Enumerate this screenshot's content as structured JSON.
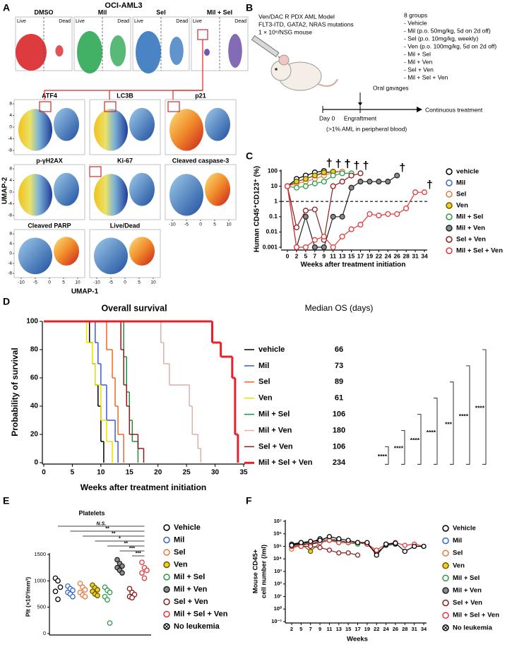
{
  "panel_labels": [
    "A",
    "B",
    "C",
    "D",
    "E",
    "F"
  ],
  "panel_a": {
    "title": "OCI-AML3",
    "conditions": [
      "DMSO",
      "Mil",
      "Sel",
      "Mil + Sel"
    ],
    "gates": [
      "Live",
      "Dead"
    ],
    "markers": [
      "ATF4",
      "LC3B",
      "p21",
      "p-γH2AX",
      "Ki-67",
      "Cleaved caspase-3",
      "Cleaved PARP",
      "Live/Dead"
    ],
    "ylabel": "UMAP-2",
    "xlabel": "UMAP-1",
    "xticks": [
      -10,
      -5,
      0,
      5,
      10
    ],
    "yticks": [
      8,
      4,
      0,
      -4,
      -8
    ]
  },
  "panel_b": {
    "model": [
      "Ven/DAC R PDX AML Model",
      "FLT3-ITD, GATA2, NRAS mutations",
      "1 × 10⁶/NSG mouse"
    ],
    "groups_title": "8 groups",
    "groups": [
      "- Vehicle",
      "- Mil (p.o. 50mg/kg, 5d on 2d off)",
      "- Sel (p.o. 10mg/kg, weekly)",
      "- Ven (p.o. 100mg/kg, 5d on 2d off)",
      "- Mil + Sel",
      "- Mil + Ven",
      "- Sel + Ven",
      "- Mil + Sel + Ven"
    ],
    "oral": "Oral gavages",
    "day0": "Day 0",
    "engraftment": "Engraftment",
    "engraftment_note": "(>1% AML in peripheral blood)",
    "continuous": "Continuous treatment"
  },
  "chart_data": [
    {
      "type": "line",
      "log_y": true,
      "ylabel": "Human CD45⁺CD123⁺ (%)",
      "xlabel": "Weeks after treatment initiation",
      "categories": [
        "0",
        "2",
        "5",
        "7",
        "9",
        "11",
        "13",
        "15",
        "17",
        "19",
        "22",
        "24",
        "26",
        "28",
        "31",
        "34"
      ],
      "ylim": [
        0.001,
        100
      ],
      "yticks": [
        0.001,
        0.01,
        0.1,
        1,
        10,
        100
      ],
      "reference_line": 1,
      "death_marker": "†",
      "series": [
        {
          "name": "vehicle",
          "color": "#000000",
          "marker_fill": "#ffffff",
          "values": [
            10,
            30,
            50,
            80,
            100,
            null,
            null,
            null,
            null,
            null,
            null,
            null,
            null,
            null,
            null,
            null
          ]
        },
        {
          "name": "Mil",
          "color": "#3a66c4",
          "marker_fill": "#ffffff",
          "values": [
            10,
            20,
            30,
            50,
            70,
            90,
            90,
            null,
            null,
            null,
            null,
            null,
            null,
            null,
            null,
            null
          ]
        },
        {
          "name": "Sel",
          "color": "#e87a3c",
          "marker_fill": "#ffffff",
          "values": [
            10,
            15,
            20,
            30,
            50,
            80,
            90,
            null,
            null,
            null,
            null,
            null,
            null,
            null,
            null,
            null
          ]
        },
        {
          "name": "Ven",
          "color": "#6b5a00",
          "marker_fill": "#f0d21e",
          "values": [
            10,
            20,
            30,
            50,
            80,
            90,
            null,
            null,
            null,
            null,
            null,
            null,
            null,
            null,
            null,
            null
          ]
        },
        {
          "name": "Mil + Sel",
          "color": "#2a9a48",
          "marker_fill": "#ffffff",
          "values": [
            10,
            8,
            10,
            15,
            20,
            50,
            70,
            70,
            null,
            null,
            null,
            null,
            null,
            null,
            null,
            null
          ]
        },
        {
          "name": "Mil + Ven",
          "color": "#222222",
          "marker_fill": "#8c8c8c",
          "values": [
            10,
            0.001,
            0.1,
            0.001,
            0.001,
            0.1,
            0.1,
            8,
            20,
            20,
            20,
            20,
            50,
            null,
            null,
            null
          ]
        },
        {
          "name": "Sel + Ven",
          "color": "#8b1c1c",
          "marker_fill": "#ffffff",
          "values": [
            10,
            0.02,
            0.25,
            0.3,
            0.003,
            10,
            20,
            50,
            70,
            null,
            null,
            null,
            null,
            null,
            null,
            null
          ]
        },
        {
          "name": "Mil + Sel + Ven",
          "color": "#e2383a",
          "marker_fill": "#ffffff",
          "values": [
            10,
            0.001,
            0.001,
            0.003,
            0.005,
            0.001,
            0.005,
            0.015,
            0.03,
            0.15,
            0.12,
            0.15,
            0.15,
            0.35,
            4,
            4
          ]
        }
      ]
    },
    {
      "type": "survival",
      "title": "Overall survival",
      "median_title": "Median OS (days)",
      "ylabel": "Probability of survival",
      "xlabel": "Weeks after treatment initiation",
      "xlim": [
        0,
        35
      ],
      "xticks": [
        0,
        5,
        10,
        15,
        20,
        25,
        30,
        35
      ],
      "ylim": [
        0,
        100
      ],
      "yticks": [
        0,
        20,
        40,
        60,
        80,
        100
      ],
      "significance": [
        "****",
        "****",
        "****",
        "****",
        "***",
        "****",
        "****"
      ],
      "series": [
        {
          "name": "vehicle",
          "color": "#000000",
          "line_width": 1.5,
          "median_os": 66,
          "x": [
            0,
            8,
            8.5,
            9,
            9.5,
            10,
            10.5
          ],
          "values": [
            100,
            85,
            70,
            55,
            40,
            15,
            0
          ]
        },
        {
          "name": "Mil",
          "color": "#3a5bd0",
          "line_width": 1.5,
          "median_os": 73,
          "x": [
            0,
            9,
            9.5,
            10,
            11,
            12.5,
            13
          ],
          "values": [
            100,
            85,
            70,
            55,
            30,
            15,
            0
          ]
        },
        {
          "name": "Sel",
          "color": "#f26522",
          "line_width": 1.5,
          "median_os": 89,
          "x": [
            0,
            11,
            12,
            12.5,
            13,
            14
          ],
          "values": [
            100,
            80,
            60,
            40,
            20,
            0
          ]
        },
        {
          "name": "Ven",
          "color": "#f0e000",
          "line_width": 1.5,
          "median_os": 61,
          "x": [
            0,
            7.5,
            8.5,
            9,
            10,
            11,
            12
          ],
          "values": [
            100,
            85,
            70,
            55,
            30,
            15,
            0
          ]
        },
        {
          "name": "Mil + Sel",
          "color": "#1f8f3a",
          "line_width": 1.5,
          "median_os": 106,
          "x": [
            0,
            14,
            14.5,
            15,
            15.5,
            16.5
          ],
          "values": [
            100,
            75,
            50,
            30,
            15,
            0
          ]
        },
        {
          "name": "Mil + Ven",
          "color": "#d9b0a8",
          "line_width": 1.5,
          "median_os": 180,
          "x": [
            0,
            20.5,
            21,
            22,
            25.5,
            26,
            27,
            27.5
          ],
          "values": [
            100,
            85,
            70,
            55,
            40,
            20,
            10,
            0
          ]
        },
        {
          "name": "Sel + Ven",
          "color": "#8b1a1a",
          "line_width": 1.5,
          "median_os": 106,
          "x": [
            0,
            13.5,
            14,
            14.5,
            15,
            16.5,
            17.5
          ],
          "values": [
            100,
            80,
            55,
            40,
            20,
            10,
            0
          ]
        },
        {
          "name": "Mil + Sel + Ven",
          "color": "#e8202a",
          "line_width": 3,
          "median_os": 234,
          "x": [
            0,
            29.5,
            31,
            33,
            33.5,
            34
          ],
          "values": [
            100,
            85,
            75,
            60,
            20,
            0
          ]
        }
      ]
    },
    {
      "type": "dot",
      "title": "Platelets",
      "ylabel": "Plt (×10³/mm³)",
      "ylim": [
        0,
        1500
      ],
      "yticks": [
        0,
        500,
        1000,
        1500
      ],
      "significance": [
        "N.S.",
        "**",
        "**",
        "*",
        "**",
        "***",
        "***"
      ],
      "series": [
        {
          "name": "Vehicle",
          "color": "#000000",
          "marker_fill": "#ffffff",
          "values": [
            1050,
            1000,
            880,
            800,
            650
          ]
        },
        {
          "name": "Mil",
          "color": "#3a66c4",
          "marker_fill": "#ffffff",
          "values": [
            900,
            850,
            820,
            780,
            750,
            700
          ]
        },
        {
          "name": "Sel",
          "color": "#e87a3c",
          "marker_fill": "#ffffff",
          "values": [
            950,
            880,
            830,
            780,
            730,
            700
          ]
        },
        {
          "name": "Ven",
          "color": "#6b5a00",
          "marker_fill": "#f0d21e",
          "values": [
            920,
            870,
            830,
            800,
            750,
            720
          ]
        },
        {
          "name": "Mil + Sel",
          "color": "#2a9a48",
          "marker_fill": "#ffffff",
          "values": [
            880,
            820,
            780,
            700,
            640,
            200
          ]
        },
        {
          "name": "Mil + Ven",
          "color": "#222222",
          "marker_fill": "#8c8c8c",
          "values": [
            1400,
            1330,
            1280,
            1250,
            1200,
            1150
          ]
        },
        {
          "name": "Sel + Ven",
          "color": "#8b1c1c",
          "marker_fill": "#ffffff",
          "values": [
            850,
            780,
            740,
            700,
            680
          ]
        },
        {
          "name": "Mil + Sel + Ven",
          "color": "#e2383a",
          "marker_fill": "#ffffff",
          "values": [
            1350,
            1250,
            1200,
            1150,
            1050
          ]
        },
        {
          "name": "No leukemia",
          "color": "#000000",
          "marker_fill": "#ffffff",
          "marker": "x-circle",
          "values": []
        }
      ]
    },
    {
      "type": "line",
      "log_y": true,
      "ylabel": [
        "Mouse CD45+",
        "cell number (/ml)"
      ],
      "xlabel": "Weeks",
      "categories": [
        "2",
        "5",
        "7",
        "9",
        "11",
        "13",
        "15",
        "17",
        "19",
        "22",
        "24",
        "26",
        "28",
        "31",
        "34"
      ],
      "ylim": [
        0.1,
        10000000
      ],
      "yticks": [
        {
          "value": 0.1,
          "label": "10⁻¹"
        },
        {
          "value": 1,
          "label": "10⁰"
        },
        {
          "value": 10,
          "label": "10¹"
        },
        {
          "value": 100,
          "label": "10²"
        },
        {
          "value": 1000,
          "label": "10³"
        },
        {
          "value": 10000,
          "label": "10⁴"
        },
        {
          "value": 100000,
          "label": "10⁵"
        },
        {
          "value": 1000000,
          "label": "10⁶"
        },
        {
          "value": 10000000,
          "label": "10⁷"
        }
      ],
      "series": [
        {
          "name": "Vehicle",
          "color": "#000000",
          "marker_fill": "#ffffff",
          "values": [
            150000,
            200000,
            200000,
            400000,
            null,
            null,
            null,
            null,
            null,
            null,
            null,
            null,
            null,
            null,
            null
          ]
        },
        {
          "name": "Mil",
          "color": "#3a66c4",
          "marker_fill": "#ffffff",
          "values": [
            100000,
            200000,
            150000,
            300000,
            400000,
            300000,
            null,
            null,
            null,
            null,
            null,
            null,
            null,
            null,
            null
          ]
        },
        {
          "name": "Sel",
          "color": "#e87a3c",
          "marker_fill": "#ffffff",
          "values": [
            60000,
            150000,
            200000,
            200000,
            500000,
            200000,
            null,
            null,
            null,
            null,
            null,
            null,
            null,
            null,
            null
          ]
        },
        {
          "name": "Ven",
          "color": "#6b5a00",
          "marker_fill": "#f0d21e",
          "values": [
            100000,
            150000,
            40000,
            200000,
            300000,
            null,
            null,
            null,
            null,
            null,
            null,
            null,
            null,
            null,
            null
          ]
        },
        {
          "name": "Mil + Sel",
          "color": "#2a9a48",
          "marker_fill": "#ffffff",
          "values": [
            120000,
            200000,
            150000,
            250000,
            300000,
            200000,
            200000,
            150000,
            null,
            null,
            null,
            null,
            null,
            null,
            null
          ]
        },
        {
          "name": "Mil + Ven",
          "color": "#222222",
          "marker_fill": "#8c8c8c",
          "values": [
            150000,
            150000,
            150000,
            200000,
            300000,
            300000,
            200000,
            200000,
            150000,
            30000,
            120000,
            150000,
            null,
            null,
            null
          ]
        },
        {
          "name": "Sel + Ven",
          "color": "#8b1c1c",
          "marker_fill": "#ffffff",
          "values": [
            100000,
            100000,
            100000,
            80000,
            50000,
            30000,
            30000,
            20000,
            null,
            null,
            null,
            null,
            null,
            null,
            null
          ]
        },
        {
          "name": "Mil + Sel + Ven",
          "color": "#e2383a",
          "marker_fill": "#ffffff",
          "values": [
            100000,
            100000,
            200000,
            200000,
            300000,
            200000,
            200000,
            200000,
            150000,
            50000,
            150000,
            200000,
            120000,
            150000,
            100000
          ]
        },
        {
          "name": "No leukemia",
          "color": "#000000",
          "marker_fill": "#ffffff",
          "marker": "x-circle",
          "values": [
            120000,
            200000,
            250000,
            300000,
            600000,
            400000,
            300000,
            200000,
            200000,
            20000,
            150000,
            180000,
            40000,
            100000,
            100000
          ]
        }
      ]
    }
  ]
}
